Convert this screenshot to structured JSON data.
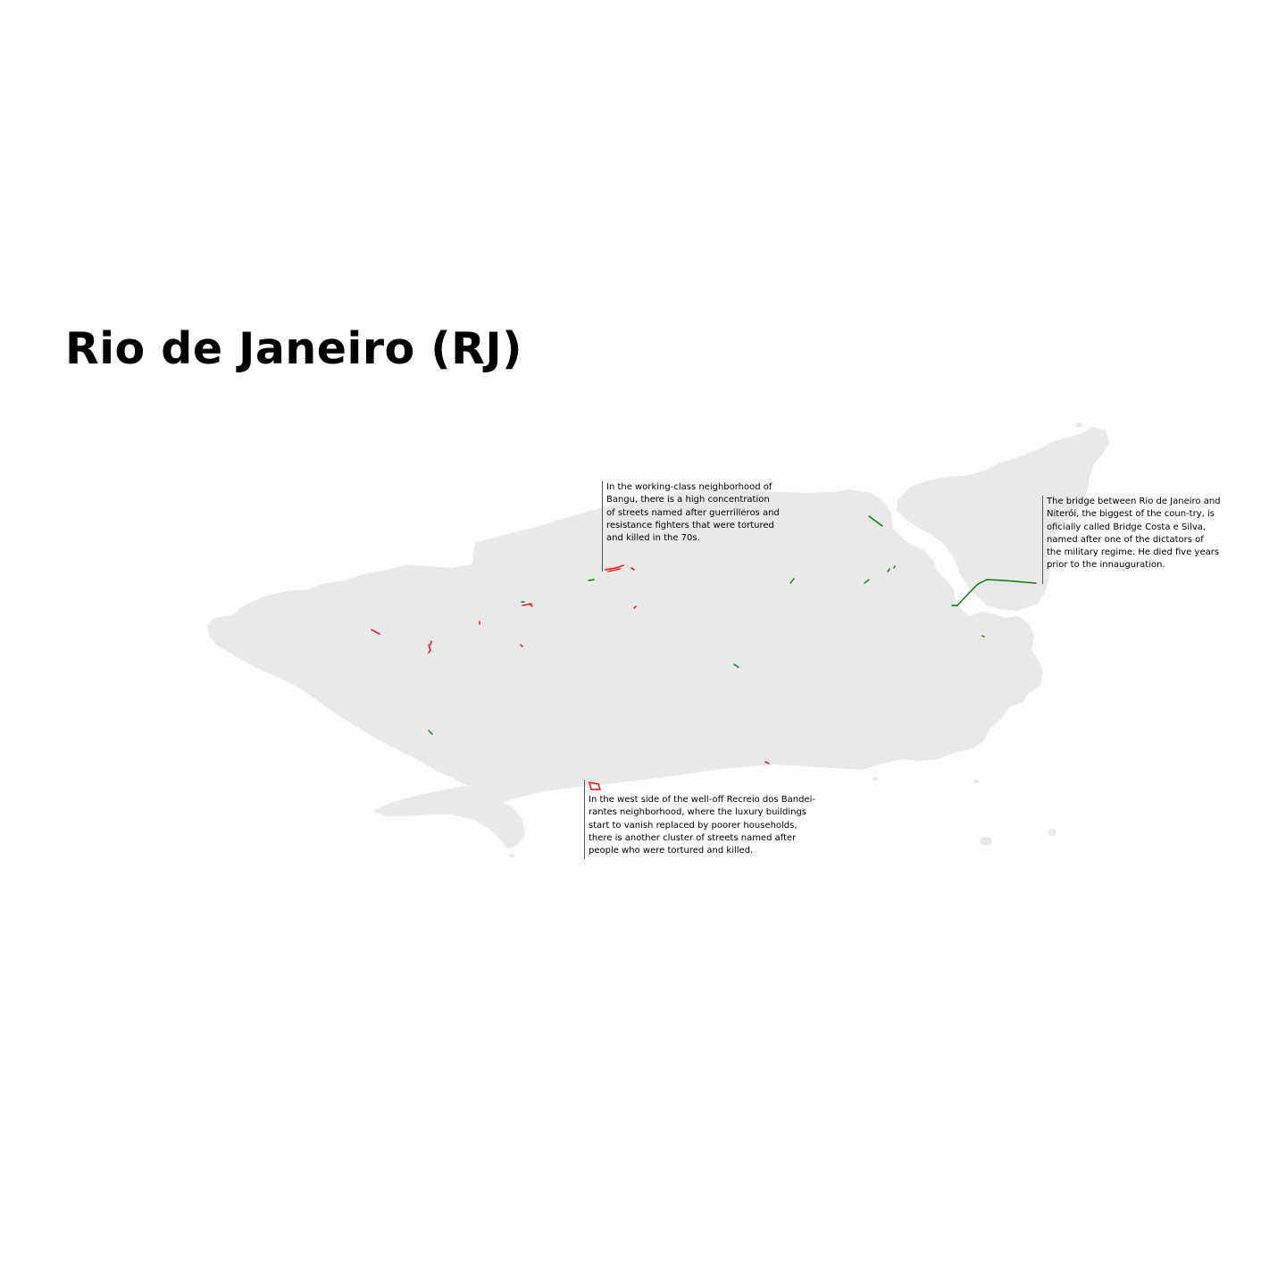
{
  "title": "Rio de Janeiro (RJ)",
  "colors": {
    "background": "#fdfdfd",
    "land": "#e9e9e9",
    "dictatorship_figure_streets": "#008000",
    "victim_streets": "#ff0000",
    "annotation_rule": "#555555"
  },
  "annotations": [
    {
      "id": "bangu",
      "text": "In the working-class neighborhood of Bangu, there is a high concentration of streets named after guerrilleros and resistance fighters that were tortured and killed in the 70s."
    },
    {
      "id": "bridge",
      "text": "The bridge between Rio de Janeiro and Niterói, the biggest of the coun-try, is oficially called Bridge Costa e Silva, named after one of the dictators of the military regime. He died five years prior to the innauguration."
    },
    {
      "id": "recreio",
      "text": "In the west side of the well-off Recreio dos Bandei-rantes neighborhood, where the luxury buildings start to vanish replaced by poorer households, there is another cluster of streets named after people who were tortured and killed."
    }
  ]
}
